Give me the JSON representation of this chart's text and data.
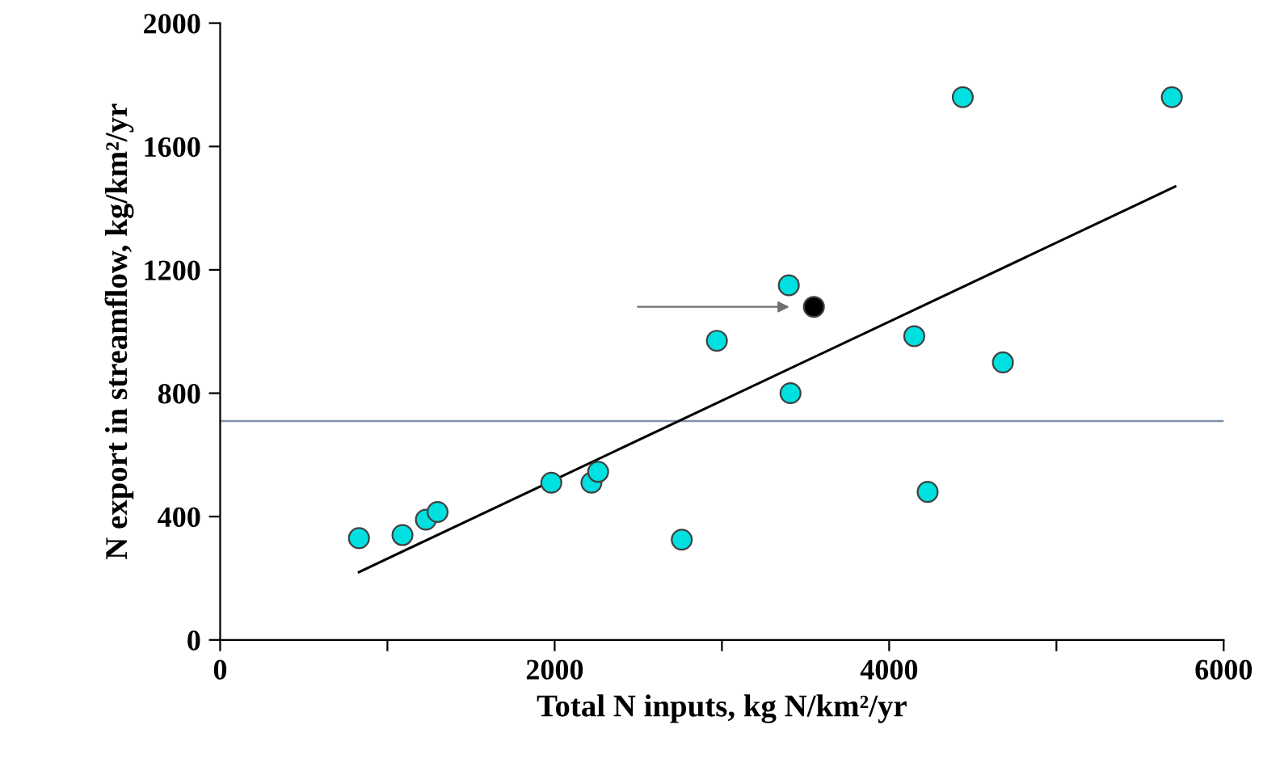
{
  "chart_data": {
    "type": "scatter",
    "xlabel": "Total N inputs, kg N/km²/yr",
    "ylabel": "N export in streamflow, kg/km²/yr",
    "xlim": [
      0,
      6000
    ],
    "ylim": [
      0,
      2000
    ],
    "xticks": [
      0,
      {
        "value": 1000,
        "label": null
      },
      2000,
      {
        "value": 3000,
        "label": null
      },
      4000,
      {
        "value": 5000,
        "label": null
      },
      6000
    ],
    "yticks": [
      0,
      400,
      800,
      1200,
      1600,
      2000
    ],
    "grid": false,
    "legend": false,
    "series": [
      {
        "marker": "circle",
        "color": "#00e0e0",
        "x": [
          830,
          1090,
          1230,
          1300,
          1980,
          2220,
          2260,
          2760,
          2970,
          3400,
          3410,
          4150,
          4230,
          4440,
          4680,
          5690
        ],
        "values": [
          330,
          340,
          390,
          415,
          510,
          510,
          545,
          325,
          970,
          1150,
          800,
          985,
          480,
          1760,
          900,
          1760
        ]
      },
      {
        "marker": "circle",
        "color": "#000000",
        "x": [
          3550
        ],
        "values": [
          1080
        ]
      },
      {
        "type": "line",
        "color": "#000000",
        "x": [
          830,
          5710
        ],
        "values": [
          220,
          1470
        ]
      }
    ],
    "ref_lines": [
      {
        "axis": "y",
        "value": 710,
        "color": "#8090a8"
      }
    ]
  }
}
